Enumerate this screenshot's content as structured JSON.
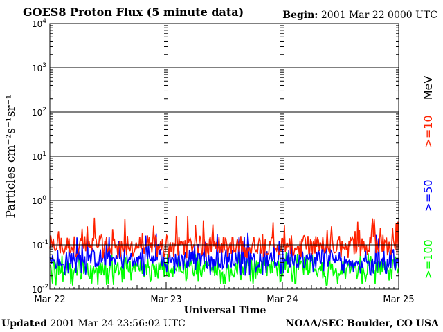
{
  "header": {
    "title": "GOES8 Proton Flux (5 minute data)",
    "begin_label": "Begin:",
    "begin_value": "2001 Mar 22 0000 UTC"
  },
  "footer": {
    "updated_label": "Updated",
    "updated_value": "2001 Mar 24 23:56:02 UTC",
    "credit": "NOAA/SEC Boulder, CO USA"
  },
  "chart_data": {
    "type": "line",
    "title": "GOES8 Proton Flux (5 minute data)",
    "xlabel": "Universal Time",
    "ylabel": "Particles cm⁻²s⁻¹sr⁻¹",
    "y_scale": "log",
    "ylim": [
      0.01,
      10000
    ],
    "y_ticks": [
      {
        "value": 0.01,
        "base": "10",
        "exp": "-2"
      },
      {
        "value": 0.1,
        "base": "10",
        "exp": "-1"
      },
      {
        "value": 1,
        "base": "10",
        "exp": "0"
      },
      {
        "value": 10,
        "base": "10",
        "exp": "1"
      },
      {
        "value": 100,
        "base": "10",
        "exp": "2"
      },
      {
        "value": 1000,
        "base": "10",
        "exp": "3"
      },
      {
        "value": 10000,
        "base": "10",
        "exp": "4"
      }
    ],
    "x_range": [
      "2001-03-22 00:00",
      "2001-03-25 00:00"
    ],
    "x_ticks": [
      "Mar 22",
      "Mar 23",
      "Mar 24",
      "Mar 25"
    ],
    "grid": true,
    "legend_unit": "MeV",
    "series": [
      {
        "name": ">=10",
        "color": "#ff2200",
        "typical": 0.1,
        "low": 0.05,
        "high": 0.45
      },
      {
        "name": ">=50",
        "color": "#0000ff",
        "typical": 0.05,
        "low": 0.02,
        "high": 0.2
      },
      {
        "name": ">=100",
        "color": "#00ff00",
        "typical": 0.03,
        "low": 0.012,
        "high": 0.07
      }
    ]
  }
}
